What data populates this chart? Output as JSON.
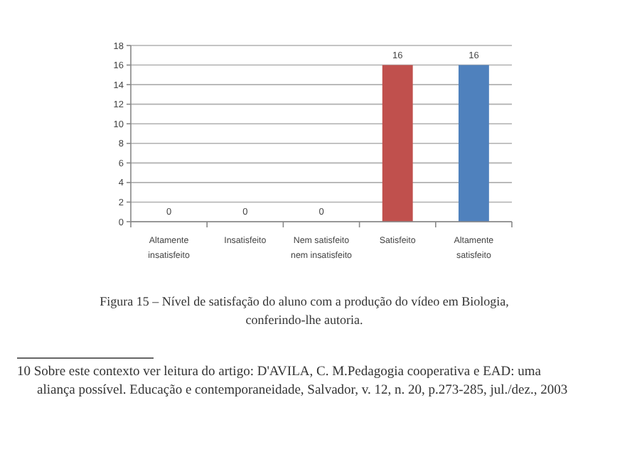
{
  "chart_data": {
    "type": "bar",
    "categories": [
      "Altamente insatisfeito",
      "Insatisfeito",
      "Nem satisfeito nem insatisfeito",
      "Satisfeito",
      "Altamente satisfeito"
    ],
    "values": [
      0,
      0,
      0,
      16,
      16
    ],
    "colors": [
      "#4f81bd",
      "#4f81bd",
      "#4f81bd",
      "#c0504d",
      "#4f81bd"
    ],
    "ylim": [
      0,
      18
    ],
    "yticks": [
      0,
      2,
      4,
      6,
      8,
      10,
      12,
      14,
      16,
      18
    ],
    "grid": "y",
    "data_labels": true,
    "annotations": [
      "Figura 15 – Nível de satisfação do aluno com a produção do vídeo em Biologia, conferindo-lhe autoria.",
      "10 Sobre este contexto ver leitura do artigo: D'AVILA, C. M.Pedagogia cooperativa e EAD: uma aliança possível. Educação e contemporaneidade, Salvador, v. 12, n. 20, p.273-285, jul./dez., 2003"
    ]
  }
}
